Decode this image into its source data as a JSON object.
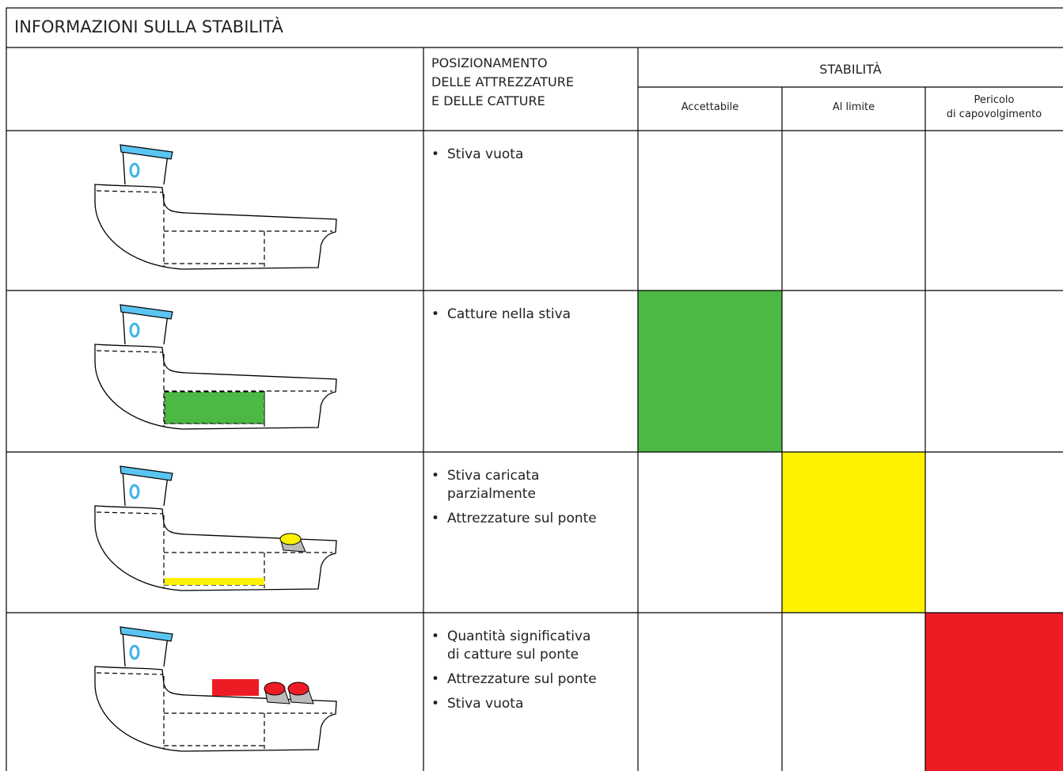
{
  "header": {
    "title": "INFORMAZIONI SULLA STABILITÀ",
    "placement": [
      "POSIZIONAMENTO",
      "DELLE ATTREZZATURE",
      "E DELLE CATTURE"
    ],
    "stability": "STABILITÀ",
    "levels": [
      [
        "Accettabile"
      ],
      [
        "Al limite"
      ],
      [
        "Pericolo",
        "di capovolgimento"
      ]
    ]
  },
  "rows": [
    {
      "items": [
        [
          "Stiva vuota"
        ]
      ]
    },
    {
      "items": [
        [
          "Catture nella stiva"
        ]
      ]
    },
    {
      "items": [
        [
          "Stiva caricata",
          "parzialmente"
        ],
        [
          "Attrezzature sul ponte"
        ]
      ]
    },
    {
      "items": [
        [
          "Quantità significativa",
          "di catture sul ponte"
        ],
        [
          "Attrezzature sul ponte"
        ],
        [
          "Stiva vuota"
        ]
      ]
    }
  ]
}
